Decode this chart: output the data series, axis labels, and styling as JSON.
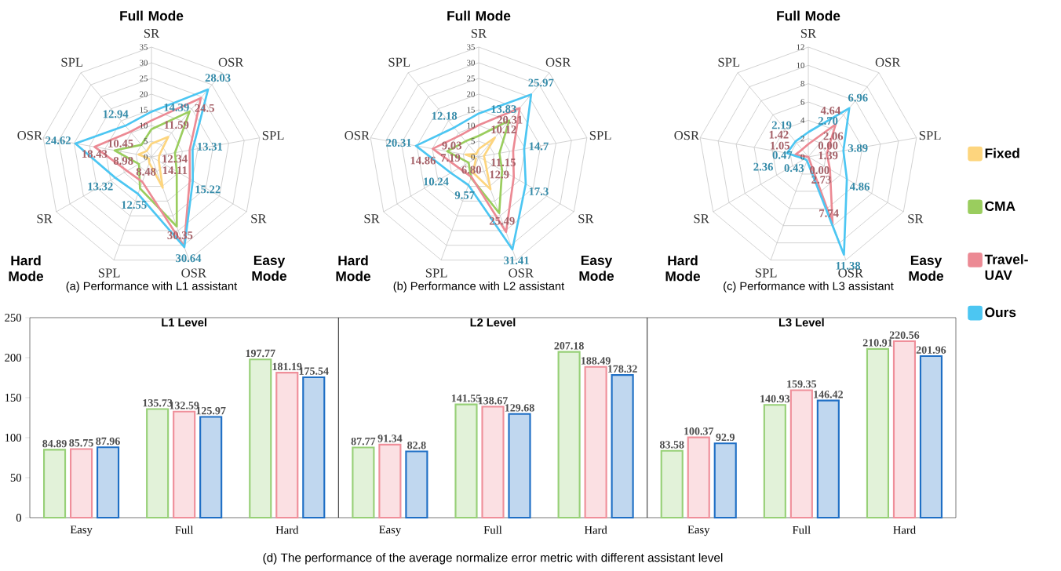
{
  "chart_data": [
    {
      "type": "radar",
      "title": "(a) Performance with L1 assistant",
      "categories": [
        "SR",
        "OSR",
        "SPL",
        "SR",
        "OSR",
        "SPL",
        "SR",
        "OSR",
        "SPL"
      ],
      "ylim": [
        0,
        35
      ],
      "yticks": [
        0,
        5,
        10,
        15,
        20,
        25,
        30,
        35
      ],
      "grid": true,
      "legend": "right",
      "annotations": [
        "Full Mode",
        "Easy Mode",
        "Hard Mode"
      ],
      "series": [
        {
          "name": "Fixed",
          "color": "#fdd57e",
          "values": [
            4.2,
            8.3,
            2.5,
            2.7,
            10.5,
            2.0,
            1.0,
            4.2,
            2.4
          ]
        },
        {
          "name": "CMA",
          "color": "#9acd5e",
          "values": [
            8.8,
            18.9,
            7.6,
            9.3,
            23.6,
            10.7,
            4.6,
            11.9,
            5.0
          ]
        },
        {
          "name": "Travel-UAV",
          "color": "#ec8a94",
          "values": [
            11.59,
            24.5,
            12.34,
            14.11,
            30.35,
            8.48,
            8.98,
            18.43,
            10.45
          ],
          "value_labels": [
            "11.59",
            "24.5",
            "12.34",
            "14.11",
            "30.35",
            "8.48",
            "8.98",
            "18.43",
            "10.45"
          ]
        },
        {
          "name": "Ours",
          "color": "#4cc6f2",
          "values": [
            14.39,
            28.03,
            13.31,
            15.22,
            30.64,
            12.55,
            13.32,
            24.62,
            12.94
          ],
          "value_labels": [
            "14.39",
            "28.03",
            "13.31",
            "15.22",
            "30.64",
            "12.55",
            "13.32",
            "24.62",
            "12.94"
          ]
        }
      ]
    },
    {
      "type": "radar",
      "title": "(b) Performance with L2 assistant",
      "categories": [
        "SR",
        "OSR",
        "SPL",
        "SR",
        "OSR",
        "SPL",
        "SR",
        "OSR",
        "SPL"
      ],
      "ylim": [
        0,
        35
      ],
      "yticks": [
        0,
        5,
        10,
        15,
        20,
        25,
        30,
        35
      ],
      "grid": true,
      "annotations": [
        "Full Mode",
        "Easy Mode",
        "Hard Mode"
      ],
      "series": [
        {
          "color": "#fdd57e",
          "values": [
            2.5,
            8.0,
            1.7,
            2.3,
            11.0,
            5.3,
            1.0,
            4.3,
            1.2
          ]
        },
        {
          "color": "#9acd5e",
          "values": [
            6.7,
            15.1,
            6.7,
            8.6,
            19.1,
            7.1,
            3.7,
            10.2,
            6.5
          ]
        },
        {
          "color": "#ec8a94",
          "values": [
            10.12,
            20.31,
            11.15,
            12.9,
            25.49,
            6.8,
            7.19,
            14.86,
            9.03
          ],
          "value_labels": [
            "10.12",
            "20.31",
            "11.15",
            "12.9",
            "25.49",
            "6.80",
            "7.19",
            "14.86",
            "9.03"
          ]
        },
        {
          "color": "#4cc6f2",
          "values": [
            13.83,
            25.97,
            14.7,
            17.3,
            31.41,
            9.57,
            10.24,
            20.31,
            12.18
          ],
          "value_labels": [
            "13.83",
            "25.97",
            "14.7",
            "17.3",
            "31.41",
            "9.57",
            "10.24",
            "20.31",
            "12.18"
          ]
        }
      ]
    },
    {
      "type": "radar",
      "title": "(c) Performance with L3 assistant",
      "categories": [
        "SR",
        "OSR",
        "SPL",
        "SR",
        "OSR",
        "SPL",
        "SR",
        "OSR",
        "SPL"
      ],
      "ylim": [
        0,
        12
      ],
      "yticks": [
        0,
        2,
        4,
        6,
        8,
        10,
        12
      ],
      "grid": true,
      "annotations": [
        "Full Mode",
        "Easy Mode",
        "Hard Mode"
      ],
      "series": [
        {
          "color": "#ec8a94",
          "values": [
            1.39,
            4.64,
            2.06,
            2.73,
            7.74,
            0.0,
            0.0,
            1.42,
            1.05
          ],
          "value_labels": [
            "1.39",
            "4.64",
            "2.06",
            "2.73",
            "7.74",
            "0.00",
            "0.00",
            "1.42",
            "1.05"
          ]
        },
        {
          "color": "#4cc6f2",
          "values": [
            2.7,
            6.96,
            3.89,
            4.86,
            11.38,
            0.43,
            0.47,
            2.36,
            2.19
          ],
          "value_labels": [
            "2.70",
            "6.96",
            "3.89",
            "4.86",
            "11.38",
            "0.43",
            "0.47",
            "2.36",
            "2.19"
          ]
        }
      ]
    },
    {
      "type": "bar",
      "title": "L1 Level",
      "categories": [
        "Easy",
        "Full",
        "Hard"
      ],
      "ylim": [
        0,
        250
      ],
      "yticks": [
        0,
        50,
        100,
        150,
        200,
        250
      ],
      "series": [
        {
          "color": "#97d077",
          "values": [
            84.89,
            135.73,
            197.77
          ],
          "value_labels": [
            "84.89",
            "135.73",
            "197.77"
          ]
        },
        {
          "color": "#ef8f9a",
          "values": [
            85.75,
            132.59,
            181.19
          ],
          "value_labels": [
            "85.75",
            "132.59",
            "181.19"
          ]
        },
        {
          "color": "#1f6fc5",
          "values": [
            87.96,
            125.97,
            175.54
          ],
          "value_labels": [
            "87.96",
            "125.97",
            "175.54"
          ]
        }
      ]
    },
    {
      "type": "bar",
      "title": "L2 Level",
      "categories": [
        "Easy",
        "Full",
        "Hard"
      ],
      "ylim": [
        0,
        250
      ],
      "tick_labels": "x",
      "annotations": [
        "(d) The performance of the average normalize error metric with different assistant level"
      ],
      "series": [
        {
          "color": "#97d077",
          "values": [
            87.77,
            141.55,
            207.18
          ],
          "value_labels": [
            "87.77",
            "141.55",
            "207.18"
          ]
        },
        {
          "color": "#ef8f9a",
          "values": [
            91.34,
            138.67,
            188.49
          ],
          "value_labels": [
            "91.34",
            "138.67",
            "188.49"
          ]
        },
        {
          "color": "#1f6fc5",
          "values": [
            82.8,
            129.68,
            178.32
          ],
          "value_labels": [
            "82.8",
            "129.68",
            "178.32"
          ]
        }
      ]
    },
    {
      "type": "bar",
      "title": "L3 Level",
      "categories": [
        "Easy",
        "Full",
        "Hard"
      ],
      "ylim": [
        0,
        250
      ],
      "tick_labels": "x",
      "series": [
        {
          "color": "#97d077",
          "values": [
            83.58,
            140.93,
            210.91
          ],
          "value_labels": [
            "83.58",
            "140.93",
            "210.91"
          ]
        },
        {
          "color": "#ef8f9a",
          "values": [
            100.37,
            159.35,
            220.56
          ],
          "value_labels": [
            "100.37",
            "159.35",
            "220.56"
          ]
        },
        {
          "color": "#1f6fc5",
          "values": [
            92.9,
            146.42,
            201.96
          ],
          "value_labels": [
            "92.9",
            "146.42",
            "201.96"
          ]
        }
      ]
    }
  ]
}
